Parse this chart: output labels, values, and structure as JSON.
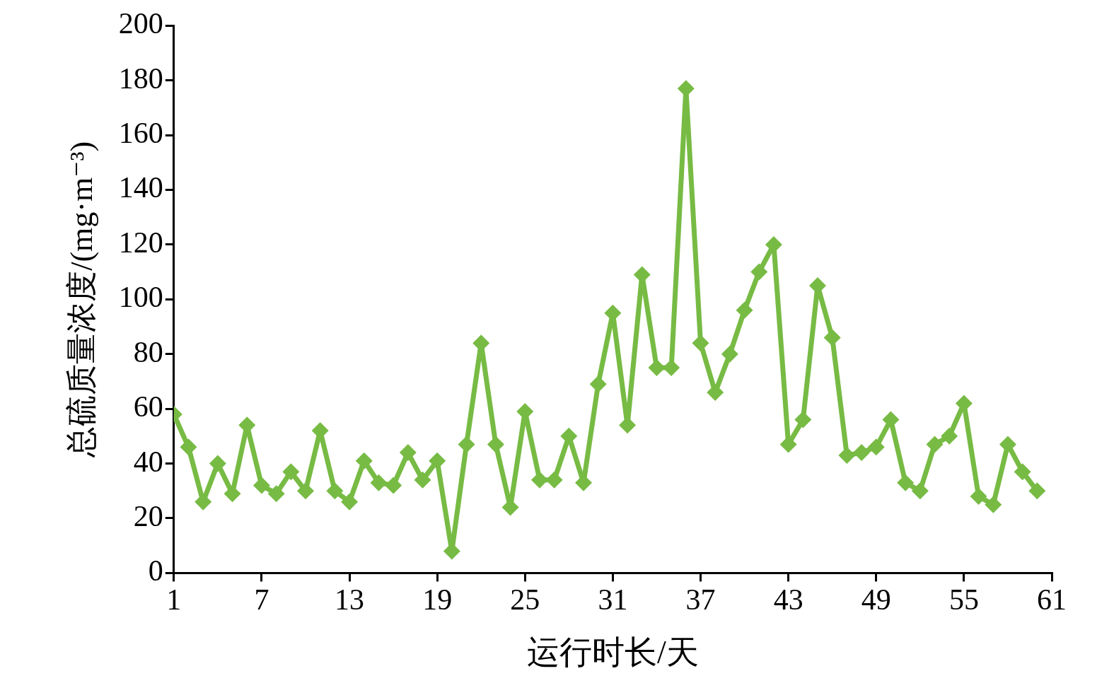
{
  "chart_data": {
    "type": "line",
    "xlabel": "运行时长/天",
    "ylabel": "总硫质量浓度/(mg·m⁻³)",
    "x": [
      1,
      2,
      3,
      4,
      5,
      6,
      7,
      8,
      9,
      10,
      11,
      12,
      13,
      14,
      15,
      16,
      17,
      18,
      19,
      20,
      21,
      22,
      23,
      24,
      25,
      26,
      27,
      28,
      29,
      30,
      31,
      32,
      33,
      34,
      35,
      36,
      37,
      38,
      39,
      40,
      41,
      42,
      43,
      44,
      45,
      46,
      47,
      48,
      49,
      50,
      51,
      52,
      53,
      54,
      55,
      56,
      57,
      58,
      59,
      60
    ],
    "series": [
      {
        "color": "#77bb44",
        "values": [
          58,
          46,
          26,
          40,
          29,
          54,
          32,
          29,
          37,
          30,
          52,
          30,
          26,
          41,
          33,
          32,
          44,
          34,
          41,
          8,
          47,
          84,
          47,
          24,
          59,
          34,
          34,
          50,
          33,
          69,
          95,
          54,
          109,
          75,
          75,
          177,
          84,
          66,
          80,
          96,
          110,
          120,
          47,
          56,
          105,
          86,
          43,
          44,
          46,
          56,
          33,
          30,
          47,
          50,
          62,
          28,
          25,
          47,
          37,
          30
        ]
      }
    ],
    "xlim": [
      1,
      61
    ],
    "xticks": [
      1,
      7,
      13,
      19,
      25,
      31,
      37,
      43,
      49,
      55,
      61
    ],
    "ylim": [
      0,
      200
    ],
    "yticks": [
      0,
      20,
      40,
      60,
      80,
      100,
      120,
      140,
      160,
      180,
      200
    ],
    "grid": false,
    "legend": false,
    "marker": "diamond",
    "line_style": "solid"
  }
}
